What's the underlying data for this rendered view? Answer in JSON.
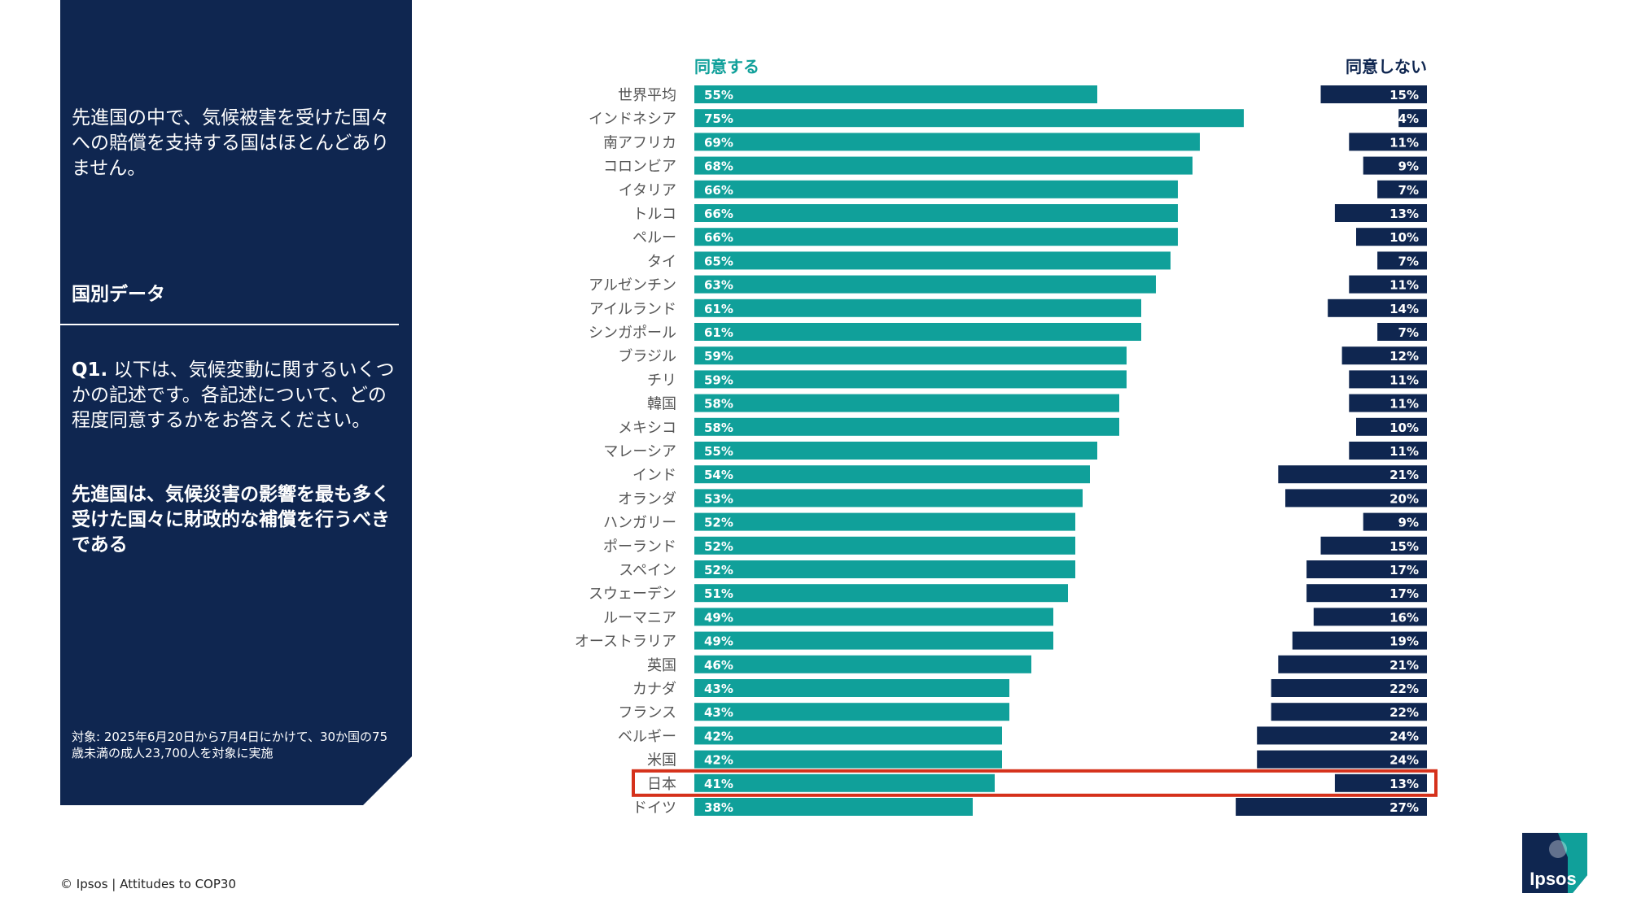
{
  "sidebar": {
    "intro": "先進国の中で、気候被害を受けた国々への賠償を支持する国はほとんどありません。",
    "section_title": "国別データ",
    "question_label": "Q1.",
    "question_text": " 以下は、気候変動に関するいくつかの記述です。各記述について、どの程度同意するかをお答えください。",
    "statement": "先進国は、気候災害の影響を最も多く受けた国々に財政的な補償を行うべきである",
    "base_note": "対象: 2025年6月20日から7月4日にかけて、30か国の75歳未満の成人23,700人を対象に実施"
  },
  "footer": {
    "text": "© Ipsos | Attitudes to COP30"
  },
  "logo": {
    "text": "Ipsos"
  },
  "colors": {
    "agree": "#10a09a",
    "disagree": "#0f2650",
    "highlight": "#d5311b",
    "sidebar": "#0f2650"
  },
  "chart_data": {
    "type": "bar",
    "series": [
      {
        "name": "同意する",
        "color": "#10a09a"
      },
      {
        "name": "同意しない",
        "color": "#0f2650"
      }
    ],
    "categories": [
      "世界平均",
      "インドネシア",
      "南アフリカ",
      "コロンビア",
      "イタリア",
      "トルコ",
      "ペルー",
      "タイ",
      "アルゼンチン",
      "アイルランド",
      "シンガポール",
      "ブラジル",
      "チリ",
      "韓国",
      "メキシコ",
      "マレーシア",
      "インド",
      "オランダ",
      "ハンガリー",
      "ポーランド",
      "スペイン",
      "スウェーデン",
      "ルーマニア",
      "オーストラリア",
      "英国",
      "カナダ",
      "フランス",
      "ベルギー",
      "米国",
      "日本",
      "ドイツ"
    ],
    "agree": [
      55,
      75,
      69,
      68,
      66,
      66,
      66,
      65,
      63,
      61,
      61,
      59,
      59,
      58,
      58,
      55,
      54,
      53,
      52,
      52,
      52,
      51,
      49,
      49,
      46,
      43,
      43,
      42,
      42,
      41,
      38
    ],
    "disagree": [
      15,
      4,
      11,
      9,
      7,
      13,
      10,
      7,
      11,
      14,
      7,
      12,
      11,
      11,
      10,
      11,
      21,
      20,
      9,
      15,
      17,
      17,
      16,
      19,
      21,
      22,
      22,
      24,
      24,
      13,
      27
    ],
    "agree_labels": [
      "55%",
      "75%",
      "69%",
      "68%",
      "66%",
      "66%",
      "66%",
      "65%",
      "63%",
      "61%",
      "61%",
      "59%",
      "59%",
      "58%",
      "58%",
      "55%",
      "54%",
      "53%",
      "52%",
      "52%",
      "52%",
      "51%",
      "49%",
      "49%",
      "46%",
      "43%",
      "43%",
      "42%",
      "42%",
      "41%",
      "38%"
    ],
    "disagree_labels": [
      "15%",
      "4%",
      "11%",
      "9%",
      "7%",
      "13%",
      "10%",
      "7%",
      "11%",
      "14%",
      "7%",
      "12%",
      "11%",
      "11%",
      "10%",
      "11%",
      "21%",
      "20%",
      "9%",
      "15%",
      "17%",
      "17%",
      "16%",
      "19%",
      "21%",
      "22%",
      "22%",
      "24%",
      "24%",
      "13%",
      "27%"
    ],
    "highlight": "日本"
  }
}
